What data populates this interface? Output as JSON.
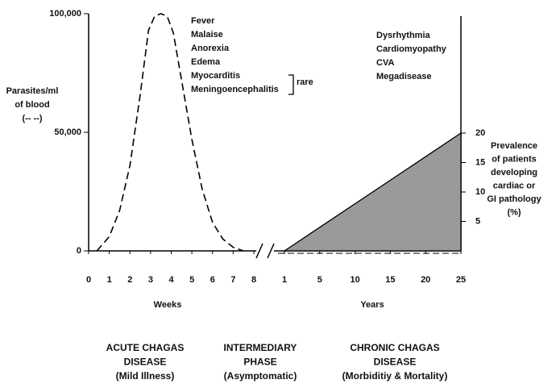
{
  "chart_data": [
    {
      "type": "line",
      "y_label": [
        "Parasites/ml",
        "of blood",
        "(-- --)"
      ],
      "x_label": "Weeks",
      "x": [
        0.4,
        1,
        1.5,
        2,
        2.5,
        2.9,
        3.2,
        3.5,
        3.8,
        4.1,
        4.5,
        5,
        5.5,
        6,
        6.5,
        7,
        7.5
      ],
      "values": [
        0,
        6000,
        17000,
        36000,
        66000,
        93000,
        99000,
        100000,
        99000,
        92000,
        72000,
        47000,
        26000,
        12000,
        5000,
        1500,
        0
      ],
      "color": "#000000",
      "dashed": true,
      "xlim": [
        0,
        8
      ],
      "xticks": [
        0,
        1,
        2,
        3,
        4,
        5,
        6,
        7,
        8
      ],
      "ylim": [
        0,
        100000
      ],
      "yticks": [
        0,
        {
          "value": 50000,
          "label": "50,000"
        },
        {
          "value": 100000,
          "label": "100,000"
        }
      ],
      "annotations": [
        "Fever",
        "Malaise",
        "Anorexia",
        "Edema",
        "Myocarditis",
        "Meningoencephalitis"
      ],
      "bracket_label": "rare"
    },
    {
      "type": "area",
      "y_label": [
        "Prevalence",
        "of patients",
        "developing",
        "cardiac or",
        "GI pathology",
        "(%)"
      ],
      "x_label": "Years",
      "x": [
        1,
        25
      ],
      "values": [
        0,
        20
      ],
      "color": "#9a9a9a",
      "xticks": [
        1,
        5,
        10,
        15,
        20,
        25
      ],
      "ylim": [
        0,
        20
      ],
      "yticks": [
        5,
        10,
        15,
        20
      ],
      "annotations": [
        "Dysrhythmia",
        "Cardiomyopathy",
        "CVA",
        "Megadisease"
      ]
    }
  ],
  "phases": [
    [
      "ACUTE CHAGAS",
      "DISEASE",
      "(Mild Illness)"
    ],
    [
      "INTERMEDIARY",
      "PHASE",
      "(Asymptomatic)"
    ],
    [
      "CHRONIC CHAGAS",
      "DISEASE",
      "(Morbiditiy & Mortality)"
    ]
  ]
}
